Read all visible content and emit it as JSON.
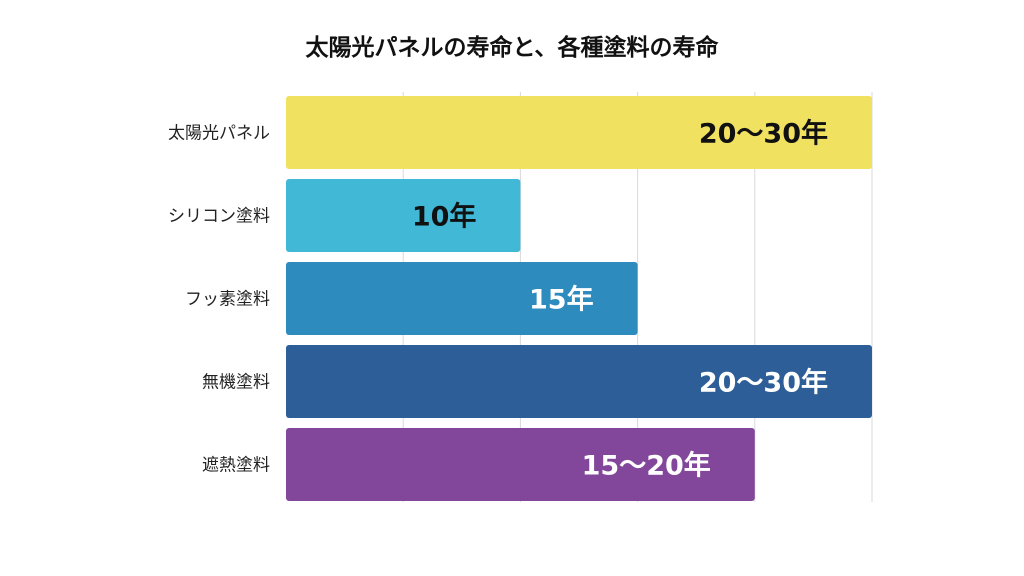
{
  "chart_data": {
    "type": "bar",
    "orientation": "horizontal",
    "title": "太陽光パネルの寿命と、各種塗料の寿命",
    "categories": [
      "太陽光パネル",
      "シリコン塗料",
      "フッ素塗料",
      "無機塗料",
      "遮熱塗料"
    ],
    "values": [
      25,
      10,
      15,
      25,
      20
    ],
    "ranges": [
      [
        20,
        30
      ],
      [
        10,
        10
      ],
      [
        15,
        15
      ],
      [
        20,
        30
      ],
      [
        15,
        20
      ]
    ],
    "value_labels": [
      "20～30年",
      "10年",
      "15年",
      "20～30年",
      "15～20年"
    ],
    "xlim": [
      0,
      25
    ],
    "x_gridlines": [
      5,
      10,
      15,
      20,
      25
    ],
    "grid": true,
    "legend": "none",
    "colors": [
      "#f0e160",
      "#41b8d6",
      "#2e8bbd",
      "#2e5e98",
      "#82479a"
    ],
    "label_colors": [
      "#111111",
      "#111111",
      "#ffffff",
      "#ffffff",
      "#ffffff"
    ],
    "gridline_color": "#d9d9d9"
  }
}
